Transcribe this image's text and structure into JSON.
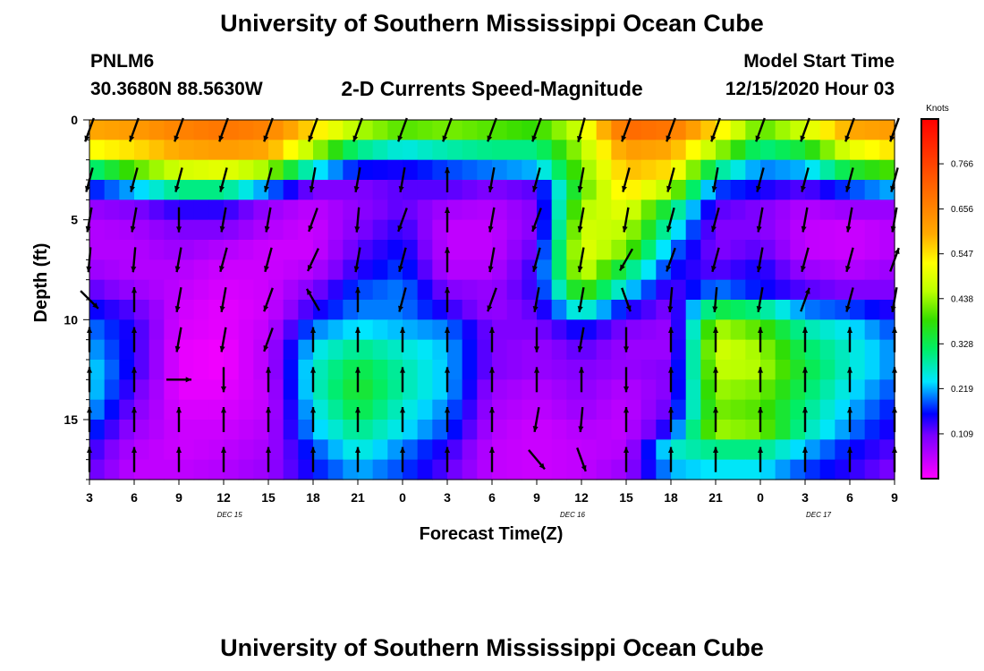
{
  "header": {
    "title": "University of Southern Mississippi Ocean Cube",
    "station": "PNLM6",
    "coords": "30.3680N 88.5630W",
    "subtitle": "2-D Currents Speed-Magnitude",
    "model_label": "Model Start Time",
    "model_time": "12/15/2020 Hour 03"
  },
  "footer": {
    "title": "University of Southern Mississippi Ocean Cube"
  },
  "chart_data": {
    "type": "heatmap",
    "title": "2-D Currents Speed-Magnitude",
    "xlabel": "Forecast Time(Z)",
    "ylabel": "Depth (ft)",
    "x_ticks": [
      "3",
      "6",
      "9",
      "12",
      "15",
      "18",
      "21",
      "0",
      "3",
      "6",
      "9",
      "12",
      "15",
      "18",
      "21",
      "0",
      "3",
      "6",
      "9"
    ],
    "x_range_hours": [
      0,
      54
    ],
    "date_labels": [
      {
        "label": "DEC 15",
        "hour": 9.4
      },
      {
        "label": "DEC 16",
        "hour": 32.4
      },
      {
        "label": "DEC 17",
        "hour": 48.9
      }
    ],
    "y_ticks": [
      0,
      5,
      10,
      15
    ],
    "ylim": [
      0,
      18
    ],
    "colorbar": {
      "unit": "Knots",
      "labels": [
        "0.766",
        "0.656",
        "0.547",
        "0.438",
        "0.328",
        "0.219",
        "0.109"
      ],
      "range": [
        0,
        0.875
      ]
    },
    "depths_ft": [
      0.5,
      1.5,
      2.5,
      3.5,
      4.5,
      5.5,
      6.5,
      7.5,
      8.5,
      9.5,
      10.5,
      11.5,
      12.5,
      13.5,
      14.5,
      15.5,
      16.5,
      17.5
    ],
    "hours": [
      0,
      3,
      6,
      9,
      12,
      15,
      18,
      21,
      24,
      27,
      30,
      33,
      36,
      39,
      42,
      45,
      48,
      51,
      54
    ],
    "speed_knots": [
      [
        0.6,
        0.62,
        0.66,
        0.68,
        0.66,
        0.55,
        0.45,
        0.4,
        0.42,
        0.4,
        0.38,
        0.48,
        0.7,
        0.68,
        0.55,
        0.4,
        0.48,
        0.6,
        0.62
      ],
      [
        0.52,
        0.55,
        0.6,
        0.62,
        0.6,
        0.45,
        0.3,
        0.25,
        0.28,
        0.3,
        0.3,
        0.45,
        0.62,
        0.6,
        0.45,
        0.3,
        0.35,
        0.5,
        0.55
      ],
      [
        0.3,
        0.4,
        0.48,
        0.5,
        0.44,
        0.25,
        0.16,
        0.15,
        0.18,
        0.2,
        0.22,
        0.42,
        0.58,
        0.55,
        0.3,
        0.2,
        0.22,
        0.35,
        0.4
      ],
      [
        0.16,
        0.22,
        0.3,
        0.3,
        0.2,
        0.1,
        0.1,
        0.12,
        0.12,
        0.1,
        0.12,
        0.4,
        0.55,
        0.45,
        0.18,
        0.15,
        0.12,
        0.18,
        0.22
      ],
      [
        0.08,
        0.1,
        0.14,
        0.14,
        0.08,
        0.05,
        0.09,
        0.12,
        0.07,
        0.06,
        0.1,
        0.45,
        0.5,
        0.32,
        0.12,
        0.1,
        0.06,
        0.08,
        0.08
      ],
      [
        0.06,
        0.07,
        0.1,
        0.1,
        0.06,
        0.04,
        0.1,
        0.14,
        0.05,
        0.05,
        0.1,
        0.48,
        0.46,
        0.26,
        0.1,
        0.1,
        0.05,
        0.04,
        0.06
      ],
      [
        0.06,
        0.06,
        0.08,
        0.06,
        0.04,
        0.04,
        0.12,
        0.16,
        0.05,
        0.05,
        0.12,
        0.5,
        0.42,
        0.2,
        0.1,
        0.12,
        0.05,
        0.04,
        0.06
      ],
      [
        0.08,
        0.06,
        0.06,
        0.04,
        0.04,
        0.06,
        0.14,
        0.18,
        0.06,
        0.06,
        0.14,
        0.48,
        0.32,
        0.16,
        0.12,
        0.15,
        0.08,
        0.06,
        0.08
      ],
      [
        0.12,
        0.08,
        0.05,
        0.03,
        0.04,
        0.1,
        0.18,
        0.2,
        0.1,
        0.08,
        0.14,
        0.4,
        0.24,
        0.12,
        0.2,
        0.16,
        0.12,
        0.1,
        0.1
      ],
      [
        0.16,
        0.12,
        0.04,
        0.02,
        0.04,
        0.14,
        0.2,
        0.2,
        0.14,
        0.08,
        0.12,
        0.28,
        0.15,
        0.1,
        0.34,
        0.3,
        0.2,
        0.18,
        0.14
      ],
      [
        0.2,
        0.14,
        0.03,
        0.02,
        0.05,
        0.2,
        0.24,
        0.22,
        0.2,
        0.1,
        0.1,
        0.16,
        0.1,
        0.08,
        0.45,
        0.4,
        0.28,
        0.24,
        0.18
      ],
      [
        0.22,
        0.14,
        0.02,
        0.01,
        0.06,
        0.24,
        0.3,
        0.26,
        0.22,
        0.1,
        0.08,
        0.12,
        0.08,
        0.08,
        0.48,
        0.44,
        0.32,
        0.26,
        0.2
      ],
      [
        0.24,
        0.14,
        0.02,
        0.01,
        0.06,
        0.26,
        0.34,
        0.28,
        0.22,
        0.1,
        0.08,
        0.1,
        0.08,
        0.1,
        0.46,
        0.45,
        0.34,
        0.26,
        0.2
      ],
      [
        0.24,
        0.12,
        0.02,
        0.02,
        0.05,
        0.26,
        0.36,
        0.28,
        0.22,
        0.08,
        0.06,
        0.09,
        0.06,
        0.1,
        0.44,
        0.42,
        0.32,
        0.24,
        0.18
      ],
      [
        0.22,
        0.1,
        0.03,
        0.03,
        0.05,
        0.24,
        0.34,
        0.26,
        0.2,
        0.07,
        0.05,
        0.08,
        0.05,
        0.12,
        0.42,
        0.4,
        0.3,
        0.22,
        0.16
      ],
      [
        0.18,
        0.08,
        0.04,
        0.04,
        0.06,
        0.22,
        0.3,
        0.24,
        0.18,
        0.06,
        0.04,
        0.06,
        0.05,
        0.16,
        0.44,
        0.42,
        0.28,
        0.2,
        0.14
      ],
      [
        0.14,
        0.06,
        0.04,
        0.05,
        0.07,
        0.18,
        0.26,
        0.2,
        0.14,
        0.05,
        0.04,
        0.05,
        0.06,
        0.26,
        0.3,
        0.3,
        0.22,
        0.16,
        0.12
      ],
      [
        0.12,
        0.05,
        0.05,
        0.06,
        0.08,
        0.16,
        0.22,
        0.18,
        0.12,
        0.05,
        0.04,
        0.05,
        0.08,
        0.22,
        0.24,
        0.24,
        0.18,
        0.14,
        0.1
      ]
    ],
    "arrow_depths_ft": [
      0.5,
      3,
      5,
      7,
      9,
      11,
      13,
      15,
      17
    ],
    "arrow_directions_deg": [
      [
        200,
        200,
        200,
        200,
        200,
        200,
        200,
        200,
        200,
        200,
        200,
        195,
        200,
        200,
        200,
        200,
        200,
        200,
        200
      ],
      [
        195,
        195,
        195,
        195,
        195,
        190,
        190,
        190,
        0,
        190,
        195,
        190,
        195,
        195,
        190,
        195,
        195,
        195,
        195
      ],
      [
        190,
        190,
        180,
        190,
        190,
        200,
        185,
        200,
        0,
        190,
        200,
        190,
        190,
        195,
        195,
        190,
        190,
        190,
        190
      ],
      [
        185,
        185,
        190,
        195,
        195,
        205,
        190,
        195,
        0,
        190,
        195,
        190,
        210,
        200,
        195,
        190,
        195,
        195,
        20
      ],
      [
        135,
        0,
        190,
        190,
        200,
        330,
        0,
        195,
        0,
        200,
        190,
        190,
        160,
        185,
        185,
        190,
        20,
        195,
        190
      ],
      [
        0,
        0,
        190,
        190,
        200,
        0,
        0,
        0,
        0,
        0,
        180,
        190,
        180,
        0,
        0,
        0,
        0,
        0,
        0
      ],
      [
        0,
        0,
        90,
        180,
        0,
        0,
        0,
        0,
        0,
        0,
        0,
        0,
        180,
        0,
        0,
        0,
        0,
        0,
        0
      ],
      [
        0,
        0,
        0,
        0,
        0,
        0,
        0,
        0,
        0,
        0,
        190,
        185,
        0,
        0,
        0,
        0,
        0,
        0,
        0
      ],
      [
        0,
        0,
        0,
        0,
        0,
        0,
        0,
        0,
        0,
        0,
        140,
        160,
        0,
        0,
        0,
        0,
        0,
        0,
        0
      ]
    ]
  }
}
